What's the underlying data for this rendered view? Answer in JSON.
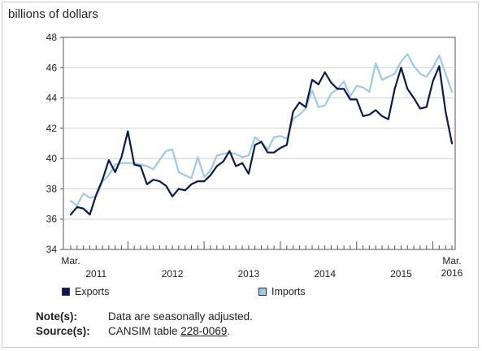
{
  "chart_data": {
    "type": "line",
    "ylabel": "billions of dollars",
    "ylim": [
      34,
      48
    ],
    "yticks": [
      34,
      36,
      38,
      40,
      42,
      44,
      46,
      48
    ],
    "x_axis": {
      "start_label": "Mar.",
      "end_label_top": "Mar.",
      "end_label_bottom": "2016",
      "year_labels": [
        "2011",
        "2012",
        "2013",
        "2014",
        "2015"
      ]
    },
    "months": [
      "2011-03",
      "2011-04",
      "2011-05",
      "2011-06",
      "2011-07",
      "2011-08",
      "2011-09",
      "2011-10",
      "2011-11",
      "2011-12",
      "2012-01",
      "2012-02",
      "2012-03",
      "2012-04",
      "2012-05",
      "2012-06",
      "2012-07",
      "2012-08",
      "2012-09",
      "2012-10",
      "2012-11",
      "2012-12",
      "2013-01",
      "2013-02",
      "2013-03",
      "2013-04",
      "2013-05",
      "2013-06",
      "2013-07",
      "2013-08",
      "2013-09",
      "2013-10",
      "2013-11",
      "2013-12",
      "2014-01",
      "2014-02",
      "2014-03",
      "2014-04",
      "2014-05",
      "2014-06",
      "2014-07",
      "2014-08",
      "2014-09",
      "2014-10",
      "2014-11",
      "2014-12",
      "2015-01",
      "2015-02",
      "2015-03",
      "2015-04",
      "2015-05",
      "2015-06",
      "2015-07",
      "2015-08",
      "2015-09",
      "2015-10",
      "2015-11",
      "2015-12",
      "2016-01",
      "2016-02",
      "2016-03"
    ],
    "series": [
      {
        "name": "Exports",
        "color": "#0b1a4e",
        "values": [
          36.3,
          36.8,
          36.7,
          36.3,
          37.6,
          38.6,
          39.9,
          39.1,
          40.1,
          41.8,
          39.6,
          39.5,
          38.3,
          38.6,
          38.5,
          38.2,
          37.5,
          38.0,
          37.9,
          38.3,
          38.5,
          38.5,
          38.9,
          39.5,
          39.8,
          40.5,
          39.5,
          39.7,
          39.0,
          40.9,
          41.1,
          40.4,
          40.4,
          40.7,
          40.9,
          43.1,
          43.7,
          43.4,
          45.2,
          44.9,
          45.7,
          45.0,
          44.6,
          44.6,
          43.9,
          43.9,
          42.8,
          42.9,
          43.2,
          42.8,
          42.6,
          44.6,
          46.0,
          44.6,
          44.0,
          43.3,
          43.4,
          45.1,
          46.1,
          43.1,
          41.0
        ]
      },
      {
        "name": "Imports",
        "color": "#9ccae8",
        "values": [
          37.2,
          36.9,
          37.7,
          37.4,
          37.5,
          38.5,
          38.9,
          39.6,
          39.7,
          39.7,
          39.7,
          39.6,
          39.5,
          39.3,
          39.9,
          40.5,
          40.6,
          39.1,
          38.9,
          38.7,
          40.1,
          38.8,
          39.2,
          40.2,
          40.3,
          40.4,
          40.3,
          40.1,
          40.2,
          41.4,
          41.1,
          40.6,
          41.4,
          41.5,
          41.3,
          42.6,
          42.9,
          43.3,
          44.5,
          43.4,
          43.5,
          44.3,
          44.6,
          45.1,
          44.1,
          44.8,
          44.7,
          44.4,
          46.3,
          45.2,
          45.4,
          45.6,
          46.4,
          46.9,
          46.1,
          45.6,
          45.4,
          46.0,
          46.8,
          45.6,
          44.4
        ]
      }
    ]
  },
  "legend": {
    "exports_label": "Exports",
    "imports_label": "Imports"
  },
  "notes": {
    "note_label": "Note(s):",
    "note_text": "Data are seasonally adjusted.",
    "source_label": "Source(s):",
    "source_prefix": "CANSIM table ",
    "source_link": "228-0069",
    "source_suffix": "."
  }
}
